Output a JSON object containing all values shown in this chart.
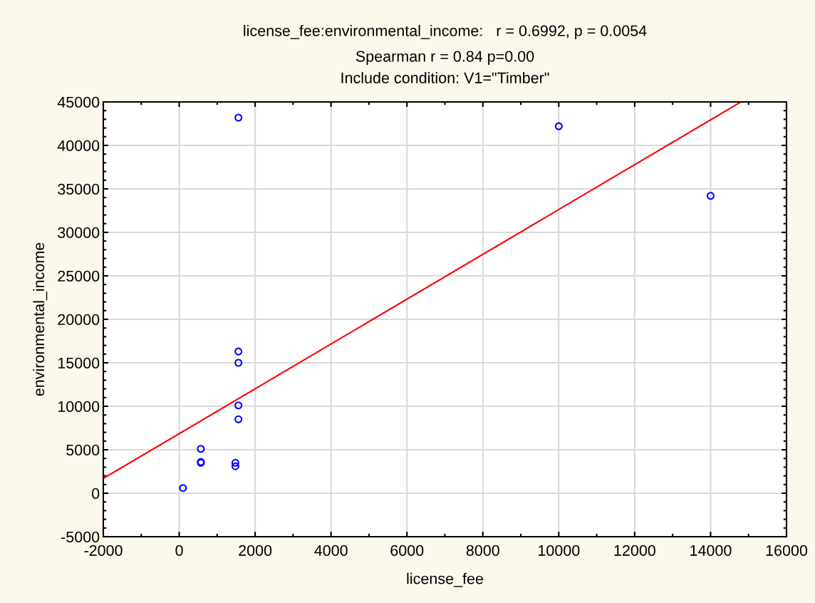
{
  "chart_data": {
    "type": "scatter",
    "title": "license_fee:environmental_income:   r = 0.6992, p = 0.0054",
    "subtitle": "Spearman r = 0.84 p=0.00\nInclude condition: V1=\"Timber\"",
    "xlabel": "license_fee",
    "ylabel": "environmental_income",
    "series": [
      {
        "color": "#0000ff",
        "marker": "circle",
        "x": [
          100,
          570,
          570,
          570,
          1480,
          1480,
          1560,
          1560,
          1560,
          1560,
          1560,
          10000,
          14000
        ],
        "values": [
          600,
          5100,
          3600,
          3500,
          3500,
          3100,
          16300,
          15000,
          10100,
          8500,
          43200,
          42200,
          34200
        ]
      },
      {
        "type": "line",
        "color": "#ff0000",
        "x": [
          -2000,
          14800
        ],
        "values": [
          1700,
          45000
        ]
      }
    ],
    "xlim": [
      -2000,
      16000
    ],
    "xticks": [
      -2000,
      0,
      2000,
      4000,
      6000,
      8000,
      10000,
      12000,
      14000,
      16000
    ],
    "ylim": [
      -5000,
      45000
    ],
    "yticks": [
      -5000,
      0,
      5000,
      10000,
      15000,
      20000,
      25000,
      30000,
      35000,
      40000,
      45000
    ],
    "grid": true
  }
}
